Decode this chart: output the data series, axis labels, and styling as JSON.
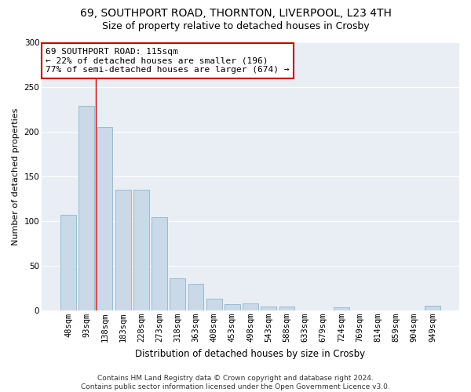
{
  "title": "69, SOUTHPORT ROAD, THORNTON, LIVERPOOL, L23 4TH",
  "subtitle": "Size of property relative to detached houses in Crosby",
  "xlabel": "Distribution of detached houses by size in Crosby",
  "ylabel": "Number of detached properties",
  "categories": [
    "48sqm",
    "93sqm",
    "138sqm",
    "183sqm",
    "228sqm",
    "273sqm",
    "318sqm",
    "363sqm",
    "408sqm",
    "453sqm",
    "498sqm",
    "543sqm",
    "588sqm",
    "633sqm",
    "679sqm",
    "724sqm",
    "769sqm",
    "814sqm",
    "859sqm",
    "904sqm",
    "949sqm"
  ],
  "values": [
    107,
    229,
    205,
    135,
    135,
    104,
    36,
    30,
    13,
    7,
    8,
    4,
    4,
    0,
    0,
    3,
    0,
    0,
    0,
    0,
    5
  ],
  "bar_color": "#c9d9e8",
  "bar_edge_color": "#7eaac8",
  "vline_x": 1.5,
  "annotation_text": "69 SOUTHPORT ROAD: 115sqm\n← 22% of detached houses are smaller (196)\n77% of semi-detached houses are larger (674) →",
  "annotation_box_color": "#ffffff",
  "annotation_box_edge": "#cc0000",
  "vline_color": "#cc0000",
  "ylim": [
    0,
    300
  ],
  "yticks": [
    0,
    50,
    100,
    150,
    200,
    250,
    300
  ],
  "plot_bg_color": "#e8eef4",
  "footer": "Contains HM Land Registry data © Crown copyright and database right 2024.\nContains public sector information licensed under the Open Government Licence v3.0.",
  "title_fontsize": 10,
  "subtitle_fontsize": 9,
  "annotation_fontsize": 8,
  "ylabel_fontsize": 8,
  "xlabel_fontsize": 8.5,
  "footer_fontsize": 6.5,
  "tick_fontsize": 7.5
}
